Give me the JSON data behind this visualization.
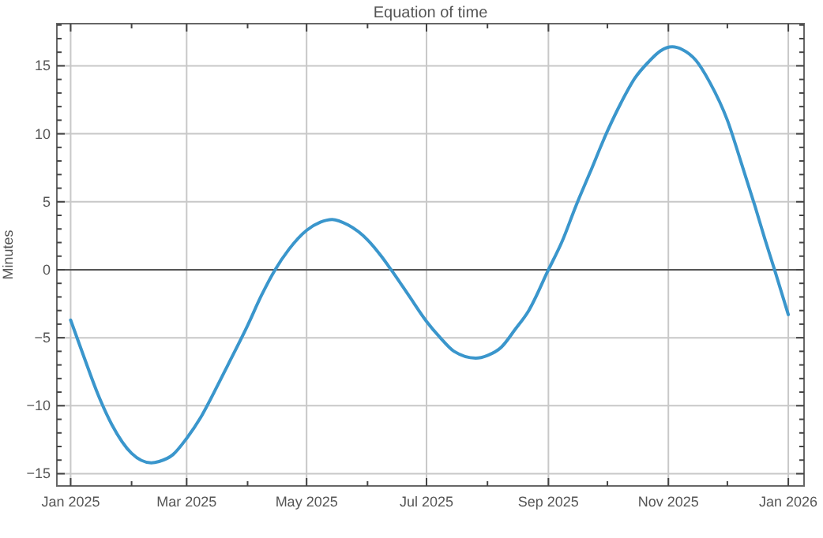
{
  "chart_data": {
    "type": "line",
    "title": "Equation of time",
    "ylabel": "Minutes",
    "x": [
      "2025-01-01",
      "2025-01-08",
      "2025-01-15",
      "2025-01-22",
      "2025-02-01",
      "2025-02-11",
      "2025-02-15",
      "2025-02-22",
      "2025-03-01",
      "2025-03-08",
      "2025-03-15",
      "2025-03-22",
      "2025-04-01",
      "2025-04-08",
      "2025-04-15",
      "2025-04-22",
      "2025-05-01",
      "2025-05-08",
      "2025-05-14",
      "2025-05-22",
      "2025-06-01",
      "2025-06-08",
      "2025-06-13",
      "2025-06-22",
      "2025-07-01",
      "2025-07-08",
      "2025-07-15",
      "2025-07-26",
      "2025-08-01",
      "2025-08-08",
      "2025-08-15",
      "2025-08-22",
      "2025-09-01",
      "2025-09-08",
      "2025-09-15",
      "2025-09-22",
      "2025-10-01",
      "2025-10-08",
      "2025-10-15",
      "2025-10-22",
      "2025-10-28",
      "2025-11-03",
      "2025-11-08",
      "2025-11-15",
      "2025-11-22",
      "2025-12-01",
      "2025-12-08",
      "2025-12-15",
      "2025-12-20",
      "2025-12-25",
      "2026-01-01"
    ],
    "series": [
      {
        "color": "#3a96cc",
        "values": [
          -3.7,
          -6.5,
          -9.2,
          -11.4,
          -13.5,
          -14.2,
          -14.1,
          -13.6,
          -12.4,
          -10.9,
          -9.0,
          -7.0,
          -4.1,
          -1.9,
          0.0,
          1.5,
          2.9,
          3.5,
          3.7,
          3.3,
          2.2,
          1.0,
          0.0,
          -1.9,
          -3.8,
          -5.0,
          -6.0,
          -6.5,
          -6.3,
          -5.7,
          -4.4,
          -3.0,
          0.0,
          2.1,
          4.7,
          7.1,
          10.2,
          12.3,
          14.1,
          15.3,
          16.1,
          16.4,
          16.2,
          15.4,
          13.8,
          11.0,
          7.9,
          4.7,
          2.3,
          0.0,
          -3.3
        ]
      }
    ],
    "xlim": [
      "2024-12-25",
      "2026-01-09"
    ],
    "xticks": [
      {
        "value": "2025-01-01",
        "label": "Jan 2025"
      },
      {
        "value": "2025-02-01",
        "label": null
      },
      {
        "value": "2025-03-01",
        "label": "Mar 2025"
      },
      {
        "value": "2025-04-01",
        "label": null
      },
      {
        "value": "2025-05-01",
        "label": "May 2025"
      },
      {
        "value": "2025-06-01",
        "label": null
      },
      {
        "value": "2025-07-01",
        "label": "Jul 2025"
      },
      {
        "value": "2025-08-01",
        "label": null
      },
      {
        "value": "2025-09-01",
        "label": "Sep 2025"
      },
      {
        "value": "2025-10-01",
        "label": null
      },
      {
        "value": "2025-11-01",
        "label": "Nov 2025"
      },
      {
        "value": "2025-12-01",
        "label": null
      },
      {
        "value": "2026-01-01",
        "label": "Jan 2026"
      }
    ],
    "ylim": [
      -15.9,
      18.1
    ],
    "yticks": [
      -15,
      {
        "value": -14,
        "label": null
      },
      {
        "value": -13,
        "label": null
      },
      {
        "value": -12,
        "label": null
      },
      {
        "value": -11,
        "label": null
      },
      -10,
      {
        "value": -9,
        "label": null
      },
      {
        "value": -8,
        "label": null
      },
      {
        "value": -7,
        "label": null
      },
      {
        "value": -6,
        "label": null
      },
      -5,
      {
        "value": -4,
        "label": null
      },
      {
        "value": -3,
        "label": null
      },
      {
        "value": -2,
        "label": null
      },
      {
        "value": -1,
        "label": null
      },
      0,
      {
        "value": 1,
        "label": null
      },
      {
        "value": 2,
        "label": null
      },
      {
        "value": 3,
        "label": null
      },
      {
        "value": 4,
        "label": null
      },
      5,
      {
        "value": 6,
        "label": null
      },
      {
        "value": 7,
        "label": null
      },
      {
        "value": 8,
        "label": null
      },
      {
        "value": 9,
        "label": null
      },
      10,
      {
        "value": 11,
        "label": null
      },
      {
        "value": 12,
        "label": null
      },
      {
        "value": 13,
        "label": null
      },
      {
        "value": 14,
        "label": null
      },
      15,
      {
        "value": 16,
        "label": null
      },
      {
        "value": 17,
        "label": null
      },
      {
        "value": 18,
        "label": null
      }
    ],
    "ref_lines": [
      {
        "axis": "y",
        "value": 0,
        "color": "#555555"
      }
    ],
    "grid": true,
    "marker": "none",
    "line_style": "solid"
  }
}
